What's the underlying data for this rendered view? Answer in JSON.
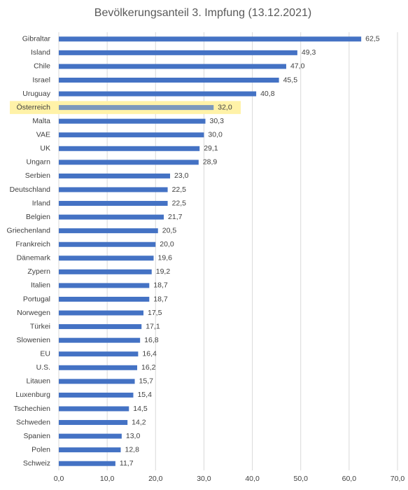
{
  "chart_data": {
    "type": "bar",
    "orientation": "horizontal",
    "title": "Bevölkerungsanteil 3. Impfung  (13.12.2021)",
    "categories": [
      "Gibraltar",
      "Island",
      "Chile",
      "Israel",
      "Uruguay",
      "Österreich",
      "Malta",
      "VAE",
      "UK",
      "Ungarn",
      "Serbien",
      "Deutschland",
      "Irland",
      "Belgien",
      "Griechenland",
      "Frankreich",
      "Dänemark",
      "Zypern",
      "Italien",
      "Portugal",
      "Norwegen",
      "Türkei",
      "Slowenien",
      "EU",
      "U.S.",
      "Litauen",
      "Luxenburg",
      "Tschechien",
      "Schweden",
      "Spanien",
      "Polen",
      "Schweiz"
    ],
    "values": [
      62.5,
      49.3,
      47.0,
      45.5,
      40.8,
      32.0,
      30.3,
      30.0,
      29.1,
      28.9,
      23.0,
      22.5,
      22.5,
      21.7,
      20.5,
      20.0,
      19.6,
      19.2,
      18.7,
      18.7,
      17.5,
      17.1,
      16.8,
      16.4,
      16.2,
      15.7,
      15.4,
      14.5,
      14.2,
      13.0,
      12.8,
      11.7
    ],
    "value_labels": [
      "62,5",
      "49,3",
      "47,0",
      "45,5",
      "40,8",
      "32,0",
      "30,3",
      "30,0",
      "29,1",
      "28,9",
      "23,0",
      "22,5",
      "22,5",
      "21,7",
      "20,5",
      "20,0",
      "19,6",
      "19,2",
      "18,7",
      "18,7",
      "17,5",
      "17,1",
      "16,8",
      "16,4",
      "16,2",
      "15,7",
      "15,4",
      "14,5",
      "14,2",
      "13,0",
      "12,8",
      "11,7"
    ],
    "color": "#4472c4",
    "highlighted_category": "Österreich",
    "highlight_color": "#fff2a8",
    "xlim": [
      0,
      70
    ],
    "xticks": [
      {
        "value": 0,
        "label": "0,0"
      },
      {
        "value": 10,
        "label": "10,0"
      },
      {
        "value": 20,
        "label": "20,0"
      },
      {
        "value": 30,
        "label": "30,0"
      },
      {
        "value": 40,
        "label": "40,0"
      },
      {
        "value": 50,
        "label": "50,0"
      },
      {
        "value": 60,
        "label": "60,0"
      },
      {
        "value": 70,
        "label": "70,0"
      }
    ],
    "grid": true
  }
}
